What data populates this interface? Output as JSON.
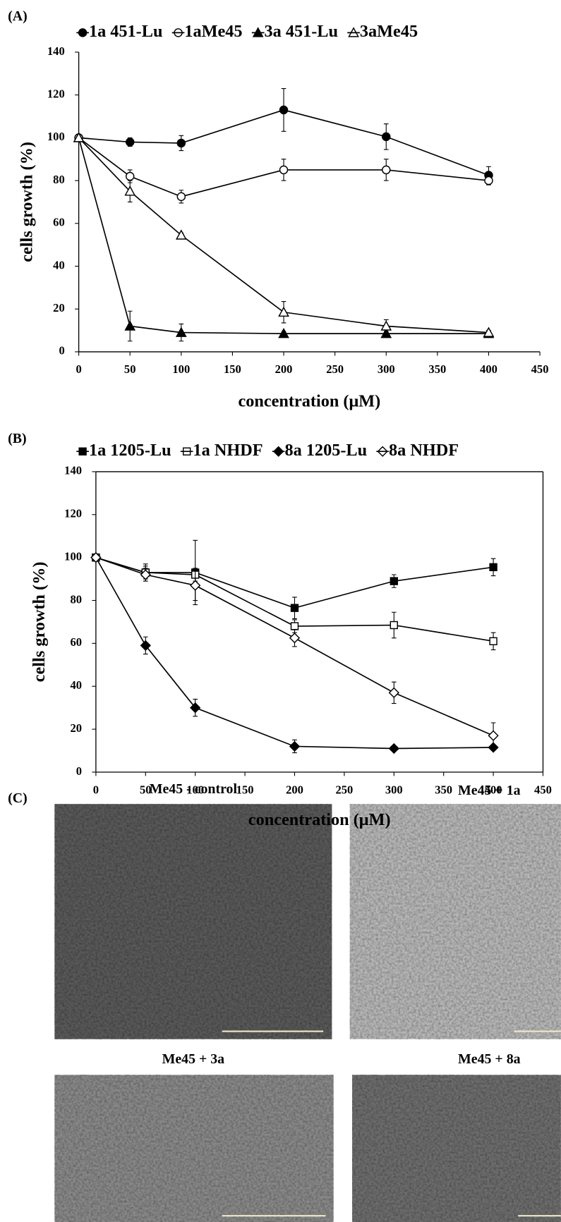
{
  "chart_data": [
    {
      "type": "line",
      "panel": "(A)",
      "x_label": "concentration (μM)",
      "y_label": "cells growth  (%)",
      "x": [
        0,
        50,
        100,
        200,
        300,
        400
      ],
      "xlim": [
        0,
        450
      ],
      "xticks": [
        0,
        50,
        100,
        150,
        200,
        250,
        300,
        350,
        400,
        450
      ],
      "ylim": [
        0,
        140
      ],
      "yticks": [
        0,
        20,
        40,
        60,
        80,
        100,
        120,
        140
      ],
      "grid": false,
      "frame": false,
      "series": [
        {
          "name": "1a 451-Lu",
          "color": "#000000",
          "marker": "circle",
          "filled": true,
          "values": [
            100,
            98,
            97.5,
            113,
            100.5,
            82.5
          ],
          "errors": [
            0,
            2,
            3.5,
            10,
            6,
            4
          ]
        },
        {
          "name": "1aMe45",
          "color": "#000000",
          "marker": "circle",
          "filled": false,
          "values": [
            100,
            82,
            72.5,
            85,
            85,
            80
          ],
          "errors": [
            0,
            3,
            3,
            5,
            5,
            2
          ]
        },
        {
          "name": "3a 451-Lu",
          "color": "#000000",
          "marker": "triangle",
          "filled": true,
          "values": [
            100,
            12,
            9,
            8.5,
            8.5,
            8.5
          ],
          "errors": [
            0,
            7,
            4,
            1,
            1,
            0.5
          ]
        },
        {
          "name": "3aMe45",
          "color": "#000000",
          "marker": "triangle",
          "filled": false,
          "values": [
            100,
            75,
            54.5,
            18.5,
            12,
            9
          ],
          "errors": [
            0,
            5,
            1,
            5,
            3,
            1
          ]
        }
      ]
    },
    {
      "type": "line",
      "panel": "(B)",
      "x_label": "concentration (μM)",
      "y_label": "cells growth  (%)",
      "x": [
        0,
        50,
        100,
        200,
        300,
        400
      ],
      "xlim": [
        0,
        450
      ],
      "xticks": [
        0,
        50,
        100,
        150,
        200,
        250,
        300,
        350,
        400,
        450
      ],
      "ylim": [
        0,
        140
      ],
      "yticks": [
        0,
        20,
        40,
        60,
        80,
        100,
        120,
        140
      ],
      "grid": false,
      "frame": true,
      "series": [
        {
          "name": "1a 1205-Lu",
          "color": "#000000",
          "marker": "square",
          "filled": true,
          "values": [
            100,
            93,
            93,
            76.5,
            89,
            95.5
          ],
          "errors": [
            0,
            4,
            15,
            5,
            3,
            4
          ]
        },
        {
          "name": "1a NHDF",
          "color": "#000000",
          "marker": "square",
          "filled": false,
          "values": [
            100,
            93,
            92,
            68,
            68.5,
            61
          ],
          "errors": [
            0,
            3,
            3,
            3,
            6,
            4
          ]
        },
        {
          "name": "8a 1205-Lu",
          "color": "#000000",
          "marker": "diamond",
          "filled": true,
          "values": [
            100,
            59,
            30,
            12,
            11,
            11.5
          ],
          "errors": [
            0,
            4,
            4,
            3,
            1,
            1
          ]
        },
        {
          "name": "8a NHDF",
          "color": "#000000",
          "marker": "diamond",
          "filled": false,
          "values": [
            100,
            92,
            87,
            62.5,
            37,
            17
          ],
          "errors": [
            0,
            3,
            7,
            4,
            5,
            6
          ]
        }
      ]
    }
  ],
  "images": {
    "panel": "(C)",
    "items": [
      {
        "title": "Me45 - control"
      },
      {
        "title": "Me45 + 1a"
      },
      {
        "title": "Me45 + 3a"
      },
      {
        "title": "Me45 + 8a"
      }
    ]
  }
}
